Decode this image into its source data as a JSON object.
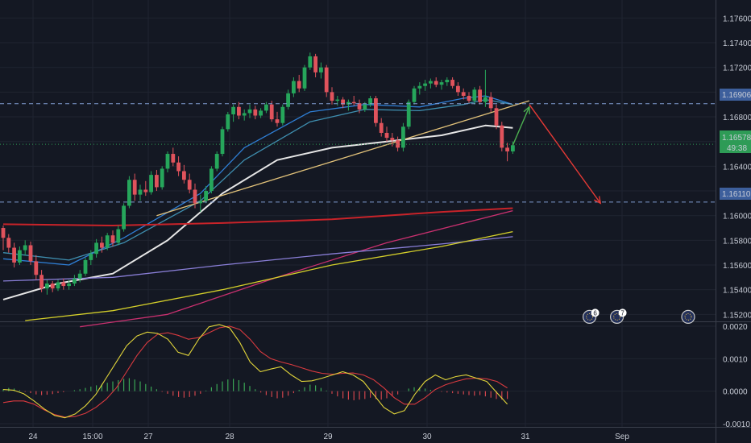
{
  "chart_data": [
    {
      "type": "candlestick",
      "symbol": "",
      "ylim": [
        1.1515,
        1.1772
      ],
      "y_ticks": [
        "1.17600",
        "1.17400",
        "1.17200",
        "1.17000",
        "1.16800",
        "1.16600",
        "1.16400",
        "1.16200",
        "1.16000",
        "1.15800",
        "1.15600",
        "1.15400",
        "1.15200"
      ],
      "x_ticks": [
        "24",
        "15:00",
        "27",
        "28",
        "29",
        "30",
        "31",
        "Sep"
      ],
      "horizontal_levels": [
        {
          "value": 1.16906,
          "label": "1.16906"
        },
        {
          "value": 1.1611,
          "label": "1.16110"
        }
      ],
      "price": {
        "value": 1.16578,
        "label": "1.16578",
        "countdown": "49:38"
      },
      "candles": [
        [
          1.159,
          1.1592,
          1.1572,
          1.1582
        ],
        [
          1.1582,
          1.1585,
          1.157,
          1.1574
        ],
        [
          1.1574,
          1.1578,
          1.1558,
          1.1562
        ],
        [
          1.1562,
          1.1575,
          1.156,
          1.1572
        ],
        [
          1.1572,
          1.158,
          1.1568,
          1.1576
        ],
        [
          1.1576,
          1.1579,
          1.156,
          1.1563
        ],
        [
          1.1563,
          1.1568,
          1.1548,
          1.1552
        ],
        [
          1.1552,
          1.1556,
          1.1538,
          1.1541
        ],
        [
          1.1541,
          1.1548,
          1.1536,
          1.1545
        ],
        [
          1.1545,
          1.1547,
          1.1538,
          1.1541
        ],
        [
          1.1541,
          1.1548,
          1.1539,
          1.1546
        ],
        [
          1.1546,
          1.1549,
          1.154,
          1.1543
        ],
        [
          1.1543,
          1.1548,
          1.154,
          1.1545
        ],
        [
          1.1545,
          1.1552,
          1.1543,
          1.1549
        ],
        [
          1.1549,
          1.1556,
          1.1546,
          1.1553
        ],
        [
          1.1553,
          1.1566,
          1.1551,
          1.1564
        ],
        [
          1.1564,
          1.1572,
          1.156,
          1.1569
        ],
        [
          1.1569,
          1.1581,
          1.1566,
          1.1578
        ],
        [
          1.1578,
          1.1583,
          1.157,
          1.1574
        ],
        [
          1.1574,
          1.1586,
          1.1572,
          1.1584
        ],
        [
          1.1584,
          1.1588,
          1.1575,
          1.1578
        ],
        [
          1.1578,
          1.1592,
          1.1576,
          1.1589
        ],
        [
          1.1589,
          1.161,
          1.1587,
          1.1608
        ],
        [
          1.1608,
          1.1632,
          1.1606,
          1.1629
        ],
        [
          1.1629,
          1.1634,
          1.1612,
          1.1617
        ],
        [
          1.1617,
          1.1625,
          1.1612,
          1.1621
        ],
        [
          1.1621,
          1.1628,
          1.1616,
          1.1619
        ],
        [
          1.1619,
          1.1636,
          1.1617,
          1.1633
        ],
        [
          1.1633,
          1.1637,
          1.162,
          1.1623
        ],
        [
          1.1623,
          1.164,
          1.1621,
          1.1638
        ],
        [
          1.1638,
          1.1652,
          1.1635,
          1.165
        ],
        [
          1.165,
          1.1655,
          1.164,
          1.1643
        ],
        [
          1.1643,
          1.1648,
          1.1632,
          1.1636
        ],
        [
          1.1636,
          1.1641,
          1.1626,
          1.1629
        ],
        [
          1.1629,
          1.1634,
          1.1618,
          1.1621
        ],
        [
          1.1621,
          1.1626,
          1.1606,
          1.161
        ],
        [
          1.161,
          1.1617,
          1.1603,
          1.1612
        ],
        [
          1.1612,
          1.1624,
          1.161,
          1.162
        ],
        [
          1.162,
          1.164,
          1.1618,
          1.1638
        ],
        [
          1.1638,
          1.1652,
          1.1636,
          1.165
        ],
        [
          1.165,
          1.1672,
          1.1648,
          1.167
        ],
        [
          1.167,
          1.1684,
          1.1668,
          1.1682
        ],
        [
          1.1682,
          1.169,
          1.1676,
          1.1688
        ],
        [
          1.1688,
          1.1692,
          1.1678,
          1.1681
        ],
        [
          1.1681,
          1.1686,
          1.1677,
          1.1683
        ],
        [
          1.1683,
          1.169,
          1.1679,
          1.1686
        ],
        [
          1.1686,
          1.1689,
          1.1678,
          1.1681
        ],
        [
          1.1681,
          1.1687,
          1.1679,
          1.1685
        ],
        [
          1.1685,
          1.1692,
          1.1683,
          1.169
        ],
        [
          1.169,
          1.1693,
          1.1676,
          1.1678
        ],
        [
          1.1678,
          1.1684,
          1.1672,
          1.1675
        ],
        [
          1.1675,
          1.169,
          1.1673,
          1.1688
        ],
        [
          1.1688,
          1.1702,
          1.1686,
          1.1699
        ],
        [
          1.1699,
          1.1712,
          1.1696,
          1.1709
        ],
        [
          1.1709,
          1.1714,
          1.17,
          1.1703
        ],
        [
          1.1703,
          1.1722,
          1.1701,
          1.172
        ],
        [
          1.172,
          1.1732,
          1.1718,
          1.1729
        ],
        [
          1.1729,
          1.1731,
          1.1712,
          1.1716
        ],
        [
          1.1716,
          1.1724,
          1.1711,
          1.172
        ],
        [
          1.172,
          1.1722,
          1.1696,
          1.17
        ],
        [
          1.17,
          1.1704,
          1.169,
          1.1693
        ],
        [
          1.1693,
          1.1697,
          1.1689,
          1.1694
        ],
        [
          1.1694,
          1.1696,
          1.1687,
          1.169
        ],
        [
          1.169,
          1.1694,
          1.1685,
          1.1692
        ],
        [
          1.1692,
          1.1697,
          1.1689,
          1.1691
        ],
        [
          1.1691,
          1.1694,
          1.1683,
          1.1686
        ],
        [
          1.1686,
          1.1692,
          1.1684,
          1.169
        ],
        [
          1.169,
          1.1697,
          1.1688,
          1.1695
        ],
        [
          1.1695,
          1.1697,
          1.1672,
          1.1675
        ],
        [
          1.1675,
          1.1679,
          1.1664,
          1.1667
        ],
        [
          1.1667,
          1.1672,
          1.166,
          1.1663
        ],
        [
          1.1663,
          1.1667,
          1.1656,
          1.1661
        ],
        [
          1.1661,
          1.1664,
          1.1652,
          1.1655
        ],
        [
          1.1655,
          1.1675,
          1.1652,
          1.1672
        ],
        [
          1.1672,
          1.1694,
          1.167,
          1.1692
        ],
        [
          1.1692,
          1.1705,
          1.169,
          1.1703
        ],
        [
          1.1703,
          1.1708,
          1.1698,
          1.1705
        ],
        [
          1.1705,
          1.171,
          1.1701,
          1.1707
        ],
        [
          1.1707,
          1.1711,
          1.1703,
          1.1709
        ],
        [
          1.1709,
          1.1712,
          1.1704,
          1.1706
        ],
        [
          1.1706,
          1.171,
          1.1702,
          1.1708
        ],
        [
          1.1708,
          1.1712,
          1.1705,
          1.171
        ],
        [
          1.171,
          1.1712,
          1.1703,
          1.1705
        ],
        [
          1.1705,
          1.1708,
          1.1697,
          1.17
        ],
        [
          1.17,
          1.1703,
          1.1694,
          1.1697
        ],
        [
          1.1697,
          1.17,
          1.1691,
          1.1693
        ],
        [
          1.1693,
          1.1704,
          1.169,
          1.1702
        ],
        [
          1.1702,
          1.1705,
          1.169,
          1.1692
        ],
        [
          1.1692,
          1.1718,
          1.1688,
          1.1696
        ],
        [
          1.1696,
          1.17,
          1.1684,
          1.1687
        ],
        [
          1.1687,
          1.169,
          1.167,
          1.1673
        ],
        [
          1.1673,
          1.1676,
          1.1652,
          1.1655
        ],
        [
          1.1655,
          1.1659,
          1.1644,
          1.1652
        ],
        [
          1.1652,
          1.166,
          1.165,
          1.1657
        ]
      ],
      "overlay_lines": [
        {
          "name": "ema-blue",
          "color": "#2f7fd6",
          "points": [
            [
              0,
              1.1565
            ],
            [
              12,
              1.156
            ],
            [
              22,
              1.1582
            ],
            [
              36,
              1.1618
            ],
            [
              44,
              1.1655
            ],
            [
              56,
              1.1684
            ],
            [
              66,
              1.169
            ],
            [
              76,
              1.1688
            ],
            [
              84,
              1.1695
            ],
            [
              88,
              1.1697
            ],
            [
              93,
              1.169
            ]
          ]
        },
        {
          "name": "ema-teal",
          "color": "#3f8fb0",
          "points": [
            [
              0,
              1.157
            ],
            [
              12,
              1.1564
            ],
            [
              22,
              1.1578
            ],
            [
              36,
              1.1612
            ],
            [
              44,
              1.1645
            ],
            [
              56,
              1.1676
            ],
            [
              66,
              1.1686
            ],
            [
              76,
              1.1685
            ],
            [
              84,
              1.169
            ],
            [
              88,
              1.1694
            ],
            [
              93,
              1.169
            ]
          ]
        },
        {
          "name": "sma-white",
          "color": "#e6e6e6",
          "points": [
            [
              0,
              1.1532
            ],
            [
              10,
              1.1545
            ],
            [
              20,
              1.1553
            ],
            [
              30,
              1.158
            ],
            [
              40,
              1.1618
            ],
            [
              50,
              1.1645
            ],
            [
              60,
              1.1655
            ],
            [
              70,
              1.166
            ],
            [
              80,
              1.1665
            ],
            [
              88,
              1.1673
            ],
            [
              93,
              1.1671
            ]
          ]
        },
        {
          "name": "sma-red",
          "color": "#c82329",
          "points": [
            [
              0,
              1.1593
            ],
            [
              20,
              1.1592
            ],
            [
              40,
              1.1594
            ],
            [
              60,
              1.1597
            ],
            [
              80,
              1.1603
            ],
            [
              93,
              1.1606
            ]
          ]
        },
        {
          "name": "sma-magenta",
          "color": "#c9306f",
          "points": [
            [
              14,
              1.151
            ],
            [
              30,
              1.152
            ],
            [
              50,
              1.155
            ],
            [
              70,
              1.1578
            ],
            [
              93,
              1.1604
            ]
          ]
        },
        {
          "name": "sma-purple",
          "color": "#8a7fd8",
          "points": [
            [
              0,
              1.1547
            ],
            [
              20,
              1.155
            ],
            [
              40,
              1.156
            ],
            [
              60,
              1.1569
            ],
            [
              80,
              1.1577
            ],
            [
              93,
              1.1583
            ]
          ]
        },
        {
          "name": "sma-yellow",
          "color": "#d4cf2a",
          "points": [
            [
              4,
              1.1515
            ],
            [
              20,
              1.1523
            ],
            [
              40,
              1.154
            ],
            [
              60,
              1.156
            ],
            [
              80,
              1.1575
            ],
            [
              93,
              1.1587
            ]
          ]
        },
        {
          "name": "trendline",
          "color": "#e2c27a",
          "points": [
            [
              28,
              1.16
            ],
            [
              96,
              1.1693
            ]
          ]
        }
      ],
      "arrows": [
        {
          "color": "#4caf50",
          "from": [
            93,
            1.1657
          ],
          "to": [
            96,
            1.1688
          ]
        },
        {
          "color": "#e53935",
          "from": [
            96,
            1.169
          ],
          "to": [
            109,
            1.161
          ]
        }
      ],
      "event_badges": [
        {
          "x": 107,
          "y": 1.1518,
          "text": "6"
        },
        {
          "x": 112,
          "y": 1.1518,
          "text": "7"
        },
        {
          "x": 125,
          "y": 1.1518,
          "text": ""
        }
      ]
    },
    {
      "type": "macd",
      "ylim": [
        -0.0011,
        0.0021
      ],
      "y_ticks": [
        "0.0020",
        "0.0010",
        "0.0000",
        "-0.0010"
      ],
      "histogram": [
        6e-05,
        0.0001,
        8e-05,
        3e-05,
        -2e-05,
        -6e-05,
        -0.0001,
        -0.00012,
        -0.00011,
        -9e-05,
        -6e-05,
        -3e-05,
        0.0,
        3e-05,
        6e-05,
        0.0001,
        0.00014,
        0.00018,
        0.00022,
        0.00026,
        0.0003,
        0.00034,
        0.00038,
        0.0004,
        0.00036,
        0.0003,
        0.00022,
        0.00014,
        6e-05,
        -2e-05,
        -8e-05,
        -0.00014,
        -0.00018,
        -0.0002,
        -0.00018,
        -0.00014,
        -8e-05,
        2e-05,
        0.00012,
        0.00022,
        0.0003,
        0.00036,
        0.00038,
        0.00034,
        0.00026,
        0.00016,
        6e-05,
        -4e-05,
        -0.00012,
        -0.00018,
        -0.00022,
        -0.0002,
        -0.00014,
        -6e-05,
        4e-05,
        0.00012,
        0.0002,
        0.00018,
        0.0001,
        2e-05,
        -8e-05,
        -0.00016,
        -0.00022,
        -0.00026,
        -0.00028,
        -0.00026,
        -0.00024,
        -0.0002,
        -0.00024,
        -0.00026,
        -0.00022,
        -0.00016,
        -0.0001,
        0.0,
        8e-05,
        0.00012,
        0.00012,
        8e-05,
        4e-05,
        0.0,
        -2e-05,
        -4e-05,
        -6e-05,
        -8e-05,
        -0.0001,
        -0.00012,
        -0.00014,
        -0.00012,
        -0.00016,
        -0.0002,
        -0.00024,
        -0.00026,
        -0.00024
      ],
      "macd_line": [
        5e-05,
        3e-05,
        -8e-05,
        -0.0003,
        -0.00055,
        -0.00075,
        -0.00082,
        -0.0007,
        -0.00045,
        -0.0001,
        0.0004,
        0.0009,
        0.0014,
        0.0017,
        0.00182,
        0.00178,
        0.0016,
        0.0012,
        0.0011,
        0.0016,
        0.00198,
        0.00205,
        0.00195,
        0.0015,
        0.0009,
        0.0006,
        0.00068,
        0.00075,
        0.0005,
        0.0003,
        0.00032,
        0.0004,
        0.0005,
        0.0006,
        0.0005,
        0.0003,
        -0.0001,
        -0.0005,
        -0.0007,
        -0.0006,
        -0.0001,
        0.0003,
        0.0005,
        0.00035,
        0.00045,
        0.0005,
        0.0004,
        0.0003,
        -5e-05,
        -0.0004
      ],
      "signal_line": [
        -0.00035,
        -0.0003,
        -0.0003,
        -0.0004,
        -0.00058,
        -0.00072,
        -0.0008,
        -0.00078,
        -0.00068,
        -0.0005,
        -0.00025,
        0.0001,
        0.0006,
        0.0011,
        0.0015,
        0.00175,
        0.0018,
        0.00172,
        0.0016,
        0.00165,
        0.0018,
        0.00195,
        0.002,
        0.0019,
        0.0016,
        0.00122,
        0.001,
        0.0009,
        0.00082,
        0.00072,
        0.00062,
        0.00055,
        0.00052,
        0.00055,
        0.00056,
        0.0005,
        0.00035,
        0.0001,
        -0.0002,
        -0.0004,
        -0.0004,
        -0.0002,
        5e-05,
        0.0002,
        0.0003,
        0.00038,
        0.0004,
        0.00038,
        0.0003,
        0.0001
      ]
    }
  ]
}
